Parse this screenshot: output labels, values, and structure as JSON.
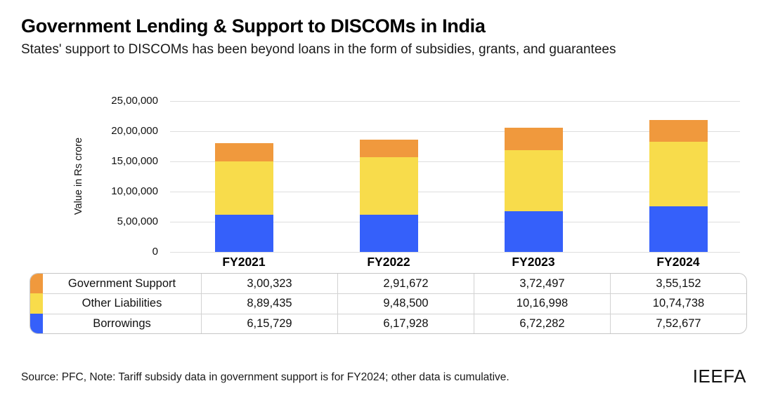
{
  "header": {
    "title": "Government Lending & Support to DISCOMs in India",
    "subtitle": "States' support to DISCOMs has been beyond loans in the form of subsidies, grants, and guarantees"
  },
  "chart_data": {
    "type": "bar",
    "stacked": true,
    "categories": [
      "FY2021",
      "FY2022",
      "FY2023",
      "FY2024"
    ],
    "series": [
      {
        "name": "Borrowings",
        "color": "#3560FA",
        "values": [
          615729,
          617928,
          672282,
          752677
        ]
      },
      {
        "name": "Other Liabilities",
        "color": "#F8DC4B",
        "values": [
          889435,
          948500,
          1016998,
          1074738
        ]
      },
      {
        "name": "Government Support",
        "color": "#F0993D",
        "values": [
          300323,
          291672,
          372497,
          355152
        ]
      }
    ],
    "title": "Government Lending & Support to DISCOMs in India",
    "xlabel": "",
    "ylabel": "Value in Rs crore",
    "ylim": [
      0,
      2500000
    ],
    "ytick_labels": [
      "0",
      "5,00,000",
      "10,00,000",
      "15,00,000",
      "20,00,000",
      "25,00,000"
    ],
    "grid": true,
    "legend_position": "table-left-color-strip"
  },
  "table": {
    "column_headers": [
      "FY2021",
      "FY2022",
      "FY2023",
      "FY2024"
    ],
    "rows": [
      {
        "label": "Government Support",
        "color": "#F0993D",
        "values": [
          "3,00,323",
          "2,91,672",
          "3,72,497",
          "3,55,152"
        ]
      },
      {
        "label": "Other Liabilities",
        "color": "#F8DC4B",
        "values": [
          "8,89,435",
          "9,48,500",
          "10,16,998",
          "10,74,738"
        ]
      },
      {
        "label": "Borrowings",
        "color": "#3560FA",
        "values": [
          "6,15,729",
          "6,17,928",
          "6,72,282",
          "7,52,677"
        ]
      }
    ]
  },
  "footer": {
    "source_note": "Source: PFC, Note: Tariff subsidy data in government support is for FY2024; other data is cumulative.",
    "logo": "IEEFA"
  }
}
